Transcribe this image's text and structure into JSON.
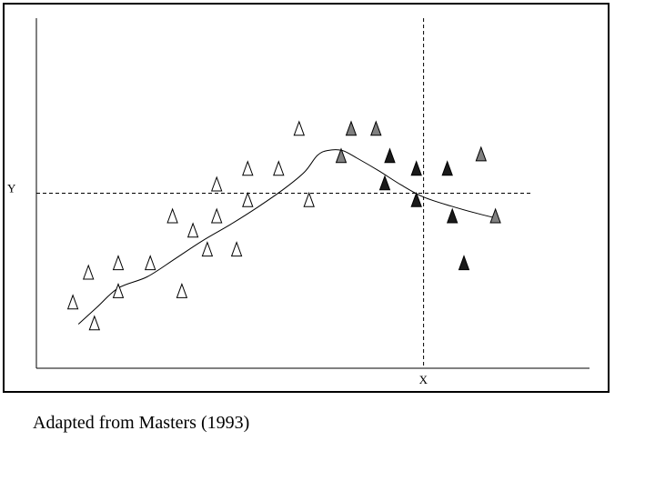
{
  "caption": "Adapted from Masters (1993)",
  "chart_data": {
    "type": "scatter",
    "xlabel": "X",
    "ylabel": "Y",
    "xlim": [
      0,
      100
    ],
    "ylim": [
      0,
      100
    ],
    "grid": false,
    "reference_lines": {
      "x": 70,
      "y": 50
    },
    "series": [
      {
        "marker": "triangle-open",
        "color": "#ffffff",
        "points": [
          [
            6.6,
            18.9
          ],
          [
            9.4,
            27.4
          ],
          [
            10.5,
            12.9
          ],
          [
            14.8,
            30.1
          ],
          [
            14.8,
            22.1
          ],
          [
            20.6,
            30.1
          ],
          [
            24.6,
            43.5
          ],
          [
            26.3,
            22.1
          ],
          [
            28.3,
            39.4
          ],
          [
            30.9,
            34.0
          ],
          [
            32.6,
            52.6
          ],
          [
            32.6,
            43.5
          ],
          [
            36.2,
            34.0
          ],
          [
            38.2,
            57.1
          ],
          [
            38.2,
            48.1
          ],
          [
            43.8,
            57.1
          ],
          [
            49.3,
            48.1
          ],
          [
            47.5,
            68.5
          ]
        ]
      },
      {
        "marker": "triangle-gray",
        "color": "#808080",
        "points": [
          [
            55.1,
            60.7
          ],
          [
            56.9,
            68.5
          ],
          [
            61.4,
            68.5
          ],
          [
            80.4,
            61.2
          ],
          [
            83.0,
            43.5
          ]
        ]
      },
      {
        "marker": "triangle-black",
        "color": "#1a1a1a",
        "points": [
          [
            63.0,
            52.9
          ],
          [
            63.9,
            60.7
          ],
          [
            68.7,
            57.1
          ],
          [
            68.7,
            48.1
          ],
          [
            74.3,
            57.1
          ],
          [
            75.2,
            43.5
          ],
          [
            77.3,
            30.1
          ]
        ]
      }
    ],
    "fit_line": [
      [
        7.6,
        12.6
      ],
      [
        11.0,
        17.5
      ],
      [
        14.8,
        22.9
      ],
      [
        20.0,
        26.1
      ],
      [
        25.0,
        31.2
      ],
      [
        30.0,
        36.4
      ],
      [
        35.0,
        41.0
      ],
      [
        40.0,
        46.0
      ],
      [
        45.0,
        51.5
      ],
      [
        48.5,
        56.1
      ],
      [
        50.8,
        60.8
      ],
      [
        52.7,
        62.2
      ],
      [
        55.3,
        62.2
      ],
      [
        58.0,
        60.0
      ],
      [
        62.0,
        56.3
      ],
      [
        66.0,
        52.3
      ],
      [
        70.0,
        48.9
      ],
      [
        75.0,
        46.3
      ],
      [
        80.0,
        44.1
      ],
      [
        83.4,
        42.8
      ]
    ]
  }
}
